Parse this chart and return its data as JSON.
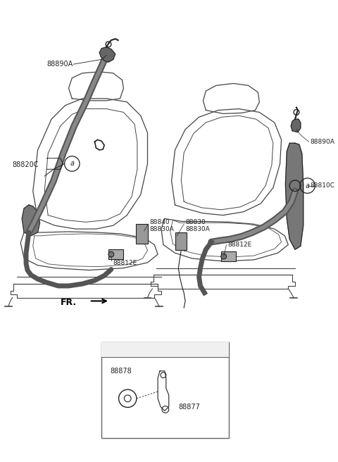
{
  "bg_color": "#ffffff",
  "lc": "#444444",
  "dc": "#222222",
  "belt_dark": "#555555",
  "belt_light": "#888888",
  "figsize": [
    4.8,
    6.56
  ],
  "dpi": 100,
  "xlim": [
    0,
    480
  ],
  "ylim": [
    0,
    656
  ]
}
